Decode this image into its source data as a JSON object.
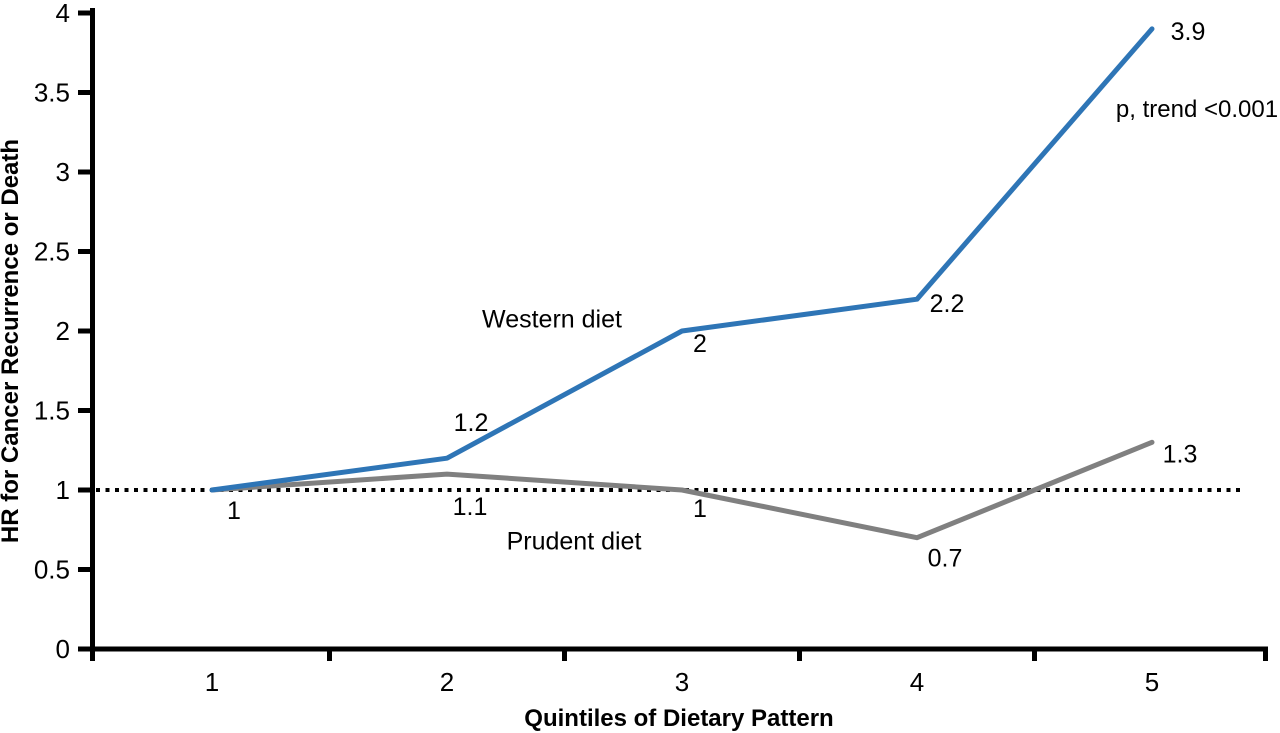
{
  "figure": {
    "y_axis_title": "HR for Cancer Recurrence or Death",
    "x_axis_title": "Quintiles of Dietary Pattern",
    "annotation_p_trend": "p, trend <0.001",
    "series_label_western": "Western diet",
    "series_label_prudent": "Prudent diet"
  },
  "colors": {
    "western": "#2E75B6",
    "prudent": "#808080",
    "axis": "#000000",
    "reference_line": "#000000",
    "text": "#000000",
    "background": "#ffffff"
  },
  "chart_data": {
    "type": "line",
    "title": "",
    "xlabel": "Quintiles of Dietary Pattern",
    "ylabel": "HR for Cancer Recurrence or Death",
    "categories": [
      "1",
      "2",
      "3",
      "4",
      "5"
    ],
    "series": [
      {
        "name": "Western diet",
        "values": [
          1,
          1.2,
          2,
          2.2,
          3.9
        ],
        "color": "#2E75B6"
      },
      {
        "name": "Prudent diet",
        "values": [
          1,
          1.1,
          1,
          0.7,
          1.3
        ],
        "color": "#808080"
      }
    ],
    "point_labels": {
      "western": [
        "1",
        "1.2",
        "2",
        "2.2",
        "3.9"
      ],
      "prudent": [
        "1",
        "1.1",
        "1",
        "0.7",
        "1.3"
      ]
    },
    "ylim": [
      0,
      4
    ],
    "y_ticks": [
      0,
      0.5,
      1,
      1.5,
      2,
      2.5,
      3,
      3.5,
      4
    ],
    "reference_line_y": 1,
    "annotations": [
      "p, trend <0.001"
    ],
    "grid": false,
    "legend_position": "inline-labels"
  }
}
